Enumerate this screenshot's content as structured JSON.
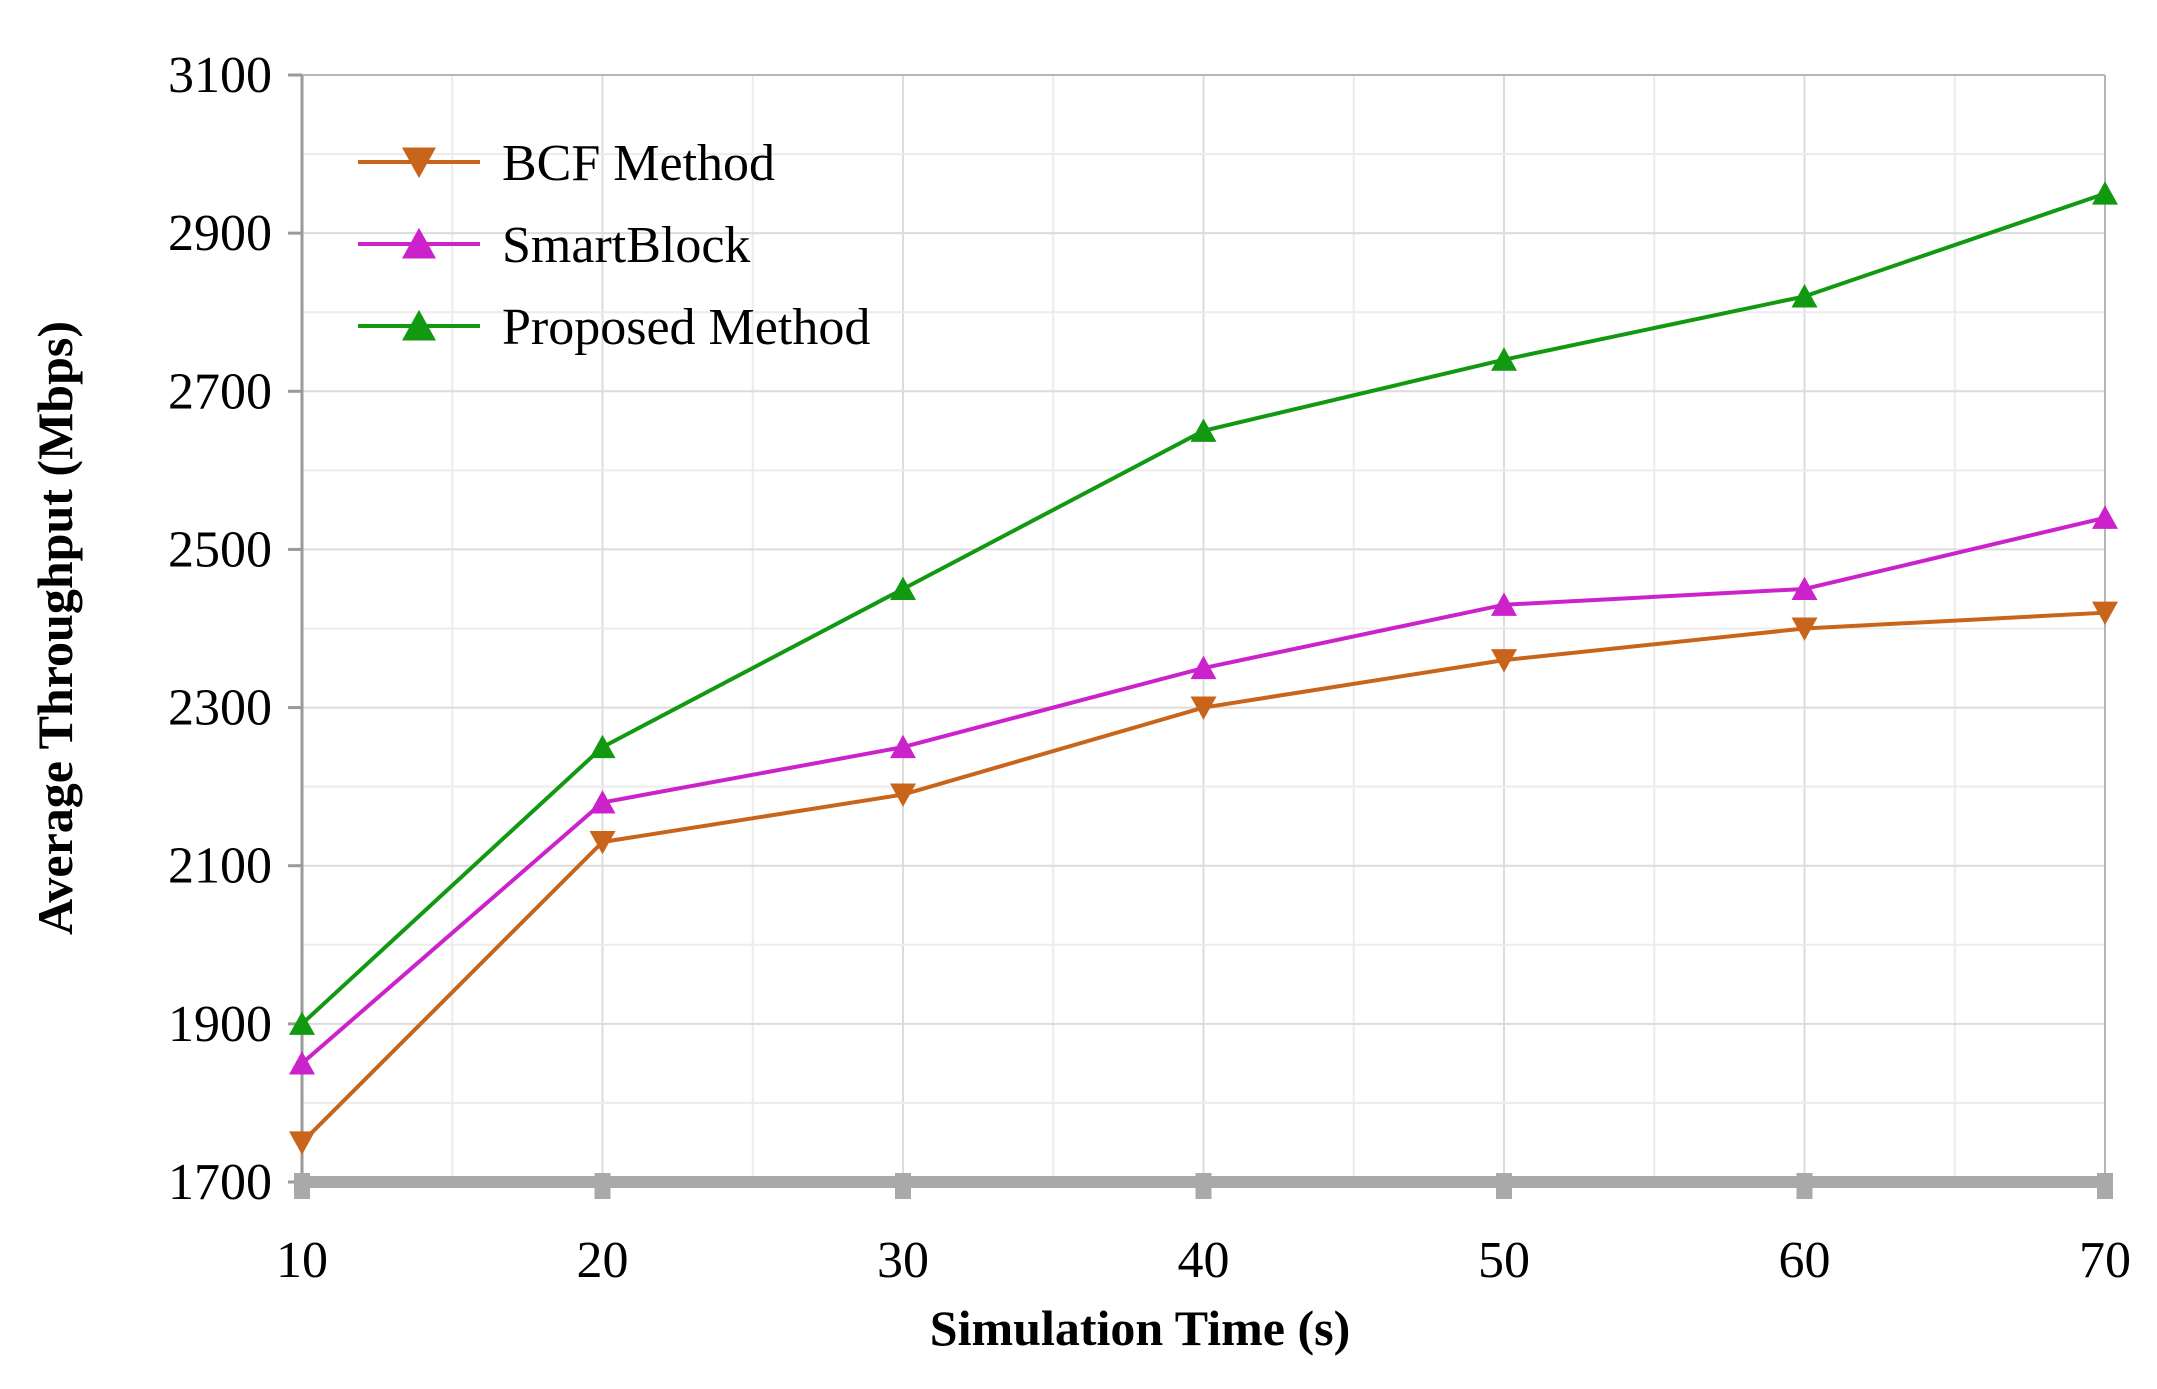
{
  "chart_data": {
    "type": "line",
    "title": "",
    "xlabel": "Simulation Time (s)",
    "ylabel": "Average Throughput (Mbps)",
    "xlim": [
      10,
      70
    ],
    "ylim": [
      1700,
      3100
    ],
    "x": [
      10,
      20,
      30,
      40,
      50,
      60,
      70
    ],
    "xticks": [
      "10",
      "20",
      "30",
      "40",
      "50",
      "60",
      "70"
    ],
    "yticks": [
      "1700",
      "1900",
      "2100",
      "2300",
      "2500",
      "2700",
      "2900",
      "3100"
    ],
    "grid": true,
    "legend_position": "top-left",
    "series": [
      {
        "name": "BCF Method",
        "color": "#c8651b",
        "marker": "triangle-down",
        "values": [
          1750,
          2130,
          2190,
          2300,
          2360,
          2400,
          2420
        ]
      },
      {
        "name": "SmartBlock",
        "color": "#cc22cc",
        "marker": "triangle-up",
        "values": [
          1850,
          2180,
          2250,
          2350,
          2430,
          2450,
          2540
        ]
      },
      {
        "name": "Proposed Method",
        "color": "#119911",
        "marker": "triangle-up",
        "values": [
          1900,
          2250,
          2450,
          2650,
          2740,
          2820,
          2950
        ]
      }
    ]
  }
}
